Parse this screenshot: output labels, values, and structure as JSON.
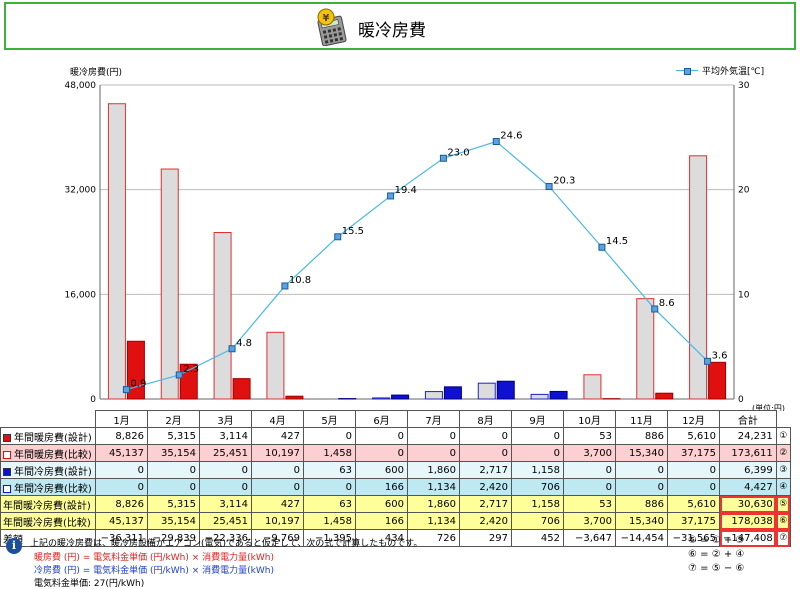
{
  "header": {
    "title": "暖冷房費"
  },
  "chart_data": {
    "type": "bar+line",
    "categories": [
      "1月",
      "2月",
      "3月",
      "4月",
      "5月",
      "6月",
      "7月",
      "8月",
      "9月",
      "10月",
      "11月",
      "12月"
    ],
    "series": [
      {
        "name": "年間暖房費(設計)",
        "type": "bar",
        "axis": "left",
        "values": [
          8826,
          5315,
          3114,
          427,
          0,
          0,
          0,
          0,
          0,
          53,
          886,
          5610
        ]
      },
      {
        "name": "年間暖房費(比較)",
        "type": "bar",
        "axis": "left",
        "values": [
          45137,
          35154,
          25451,
          10197,
          1458,
          0,
          0,
          0,
          0,
          3700,
          15340,
          37175
        ]
      },
      {
        "name": "年間冷房費(設計)",
        "type": "bar",
        "axis": "left",
        "values": [
          0,
          0,
          0,
          0,
          63,
          600,
          1860,
          2717,
          1158,
          0,
          0,
          0
        ]
      },
      {
        "name": "年間冷房費(比較)",
        "type": "bar",
        "axis": "left",
        "values": [
          0,
          0,
          0,
          0,
          0,
          166,
          1134,
          2420,
          706,
          0,
          0,
          0
        ]
      },
      {
        "name": "平均外気温[℃]",
        "type": "line",
        "axis": "right",
        "values": [
          0.9,
          2.3,
          4.8,
          10.8,
          15.5,
          19.4,
          23.0,
          24.6,
          20.3,
          14.5,
          8.6,
          3.6
        ]
      }
    ],
    "ylabel": "暖冷房費(円)",
    "ylim": [
      0,
      48000
    ],
    "yticks": [
      "0",
      "16,000",
      "32,000",
      "48,000"
    ],
    "y2lim": [
      0,
      30
    ],
    "y2ticks": [
      "0",
      "10",
      "20",
      "30"
    ],
    "legend": "top-right",
    "grid": true
  },
  "table": {
    "unit": "(単位:円)",
    "total_header": "合計",
    "rows": [
      {
        "label": "年間暖房費(設計)",
        "values": [
          "8,826",
          "5,315",
          "3,114",
          "427",
          "0",
          "0",
          "0",
          "0",
          "0",
          "53",
          "886",
          "5,610"
        ],
        "total": "24,231",
        "mark": "①",
        "color": "#e01010"
      },
      {
        "label": "年間暖房費(比較)",
        "values": [
          "45,137",
          "35,154",
          "25,451",
          "10,197",
          "1,458",
          "0",
          "0",
          "0",
          "0",
          "3,700",
          "15,340",
          "37,175"
        ],
        "total": "173,611",
        "mark": "②",
        "color": "#ffffff"
      },
      {
        "label": "年間冷房費(設計)",
        "values": [
          "0",
          "0",
          "0",
          "0",
          "63",
          "600",
          "1,860",
          "2,717",
          "1,158",
          "0",
          "0",
          "0"
        ],
        "total": "6,399",
        "mark": "③",
        "color": "#1010d0"
      },
      {
        "label": "年間冷房費(比較)",
        "values": [
          "0",
          "0",
          "0",
          "0",
          "0",
          "166",
          "1,134",
          "2,420",
          "706",
          "0",
          "0",
          "0"
        ],
        "total": "4,427",
        "mark": "④",
        "color": "#ffffff"
      },
      {
        "label": "年間暖冷房費(設計)",
        "values": [
          "8,826",
          "5,315",
          "3,114",
          "427",
          "63",
          "600",
          "1,860",
          "2,717",
          "1,158",
          "53",
          "886",
          "5,610"
        ],
        "total": "30,630",
        "mark": "⑤"
      },
      {
        "label": "年間暖冷房費(比較)",
        "values": [
          "45,137",
          "35,154",
          "25,451",
          "10,197",
          "1,458",
          "166",
          "1,134",
          "2,420",
          "706",
          "3,700",
          "15,340",
          "37,175"
        ],
        "total": "178,038",
        "mark": "⑥"
      },
      {
        "label": "差額",
        "values": [
          "−36,311",
          "−29,839",
          "−22,336",
          "−9,769",
          "−1,395",
          "434",
          "726",
          "297",
          "452",
          "−3,647",
          "−14,454",
          "−31,565"
        ],
        "total": "−147,408",
        "mark": "⑦"
      }
    ]
  },
  "notes": {
    "line1": "上記の暖冷房費は、暖冷房設備がエアコン(電気)であると仮定して、次の式で計算したものです。",
    "line2": "暖房費 (円) = 電気料金単価 (円/kWh) × 消費電力量(kWh)",
    "line3": "冷房費 (円) = 電気料金単価 (円/kWh) × 消費電力量(kWh)",
    "line4": "電気料金単価: 27(円/kWh)",
    "formula1": "⑤ = ① + ③",
    "formula2": "⑥ = ② + ④",
    "formula3": "⑦ = ⑤ − ⑥"
  }
}
